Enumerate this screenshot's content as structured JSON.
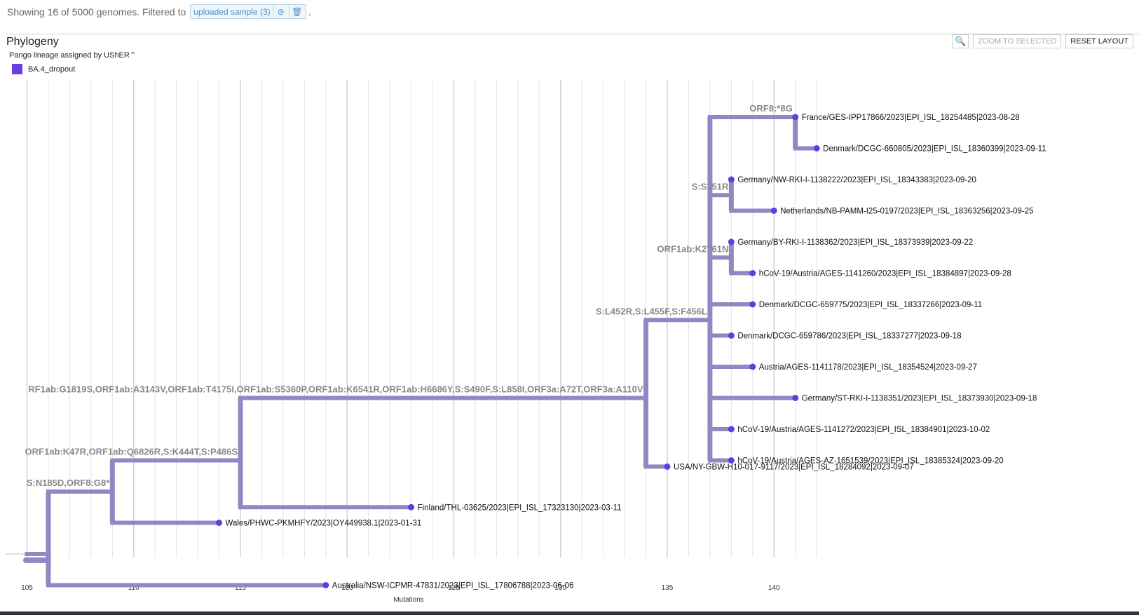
{
  "header": {
    "showing_text": "Showing 16 of 5000 genomes. Filtered to",
    "filter_chip": "uploaded sample (3)",
    "period": "."
  },
  "panel": {
    "title": "Phylogeny",
    "zoom_to_selected_label": "ZOOM TO SELECTED",
    "reset_layout_label": "RESET LAYOUT",
    "search_icon": "search-icon",
    "legend_title": "Pango lineage assigned by UShER",
    "legend_items": [
      {
        "label": "BA.4_dropout",
        "color": "#6a3fe0"
      }
    ]
  },
  "colors": {
    "branch": "#8f88c2",
    "node": "#5b3fe0",
    "grid": "#e3e3e3"
  },
  "chart_data": {
    "type": "phylogeny",
    "xlabel": "Mutations",
    "xlim": [
      105,
      143
    ],
    "xticks": [
      105,
      110,
      115,
      120,
      125,
      130,
      135,
      140
    ],
    "branches": [
      {
        "x0": 105,
        "x1": 106,
        "y": 16
      },
      {
        "x0": 106,
        "x1": 109,
        "y": 14,
        "label": "S:N185D,ORF8:G8*"
      },
      {
        "x0": 106,
        "x1": 119,
        "y": 17
      },
      {
        "x0": 109,
        "x1": 115,
        "y": 13,
        "label": "ORF1ab:K47R,ORF1ab:Q6826R,S:K444T,S:P486S"
      },
      {
        "x0": 109,
        "x1": 114,
        "y": 15
      },
      {
        "x0": 115,
        "x1": 134,
        "y": 11,
        "label": "RF1ab:G1819S,ORF1ab:A3143V,ORF1ab:T4175I,ORF1ab:S5360P,ORF1ab:K6541R,ORF1ab:H6686Y,S:S490F,S:L858I,ORF3a:A72T,ORF3a:A110V"
      },
      {
        "x0": 115,
        "x1": 123,
        "y": 14.5
      },
      {
        "x0": 134,
        "x1": 137,
        "y": 8.5,
        "label": "S:L452R,S:L455F,S:F456L"
      },
      {
        "x0": 134,
        "x1": 135,
        "y": 13.2
      },
      {
        "x0": 137,
        "x1": 141,
        "y": 2,
        "label": "ORF8:*8G"
      },
      {
        "x0": 137,
        "x1": 138,
        "y": 4.5,
        "label": "S:S151R"
      },
      {
        "x0": 137,
        "x1": 138,
        "y": 6.5,
        "label": "ORF1ab:K2761N"
      },
      {
        "x0": 137,
        "x1": 139,
        "y": 8
      },
      {
        "x0": 137,
        "x1": 138,
        "y": 9
      },
      {
        "x0": 137,
        "x1": 139,
        "y": 10
      },
      {
        "x0": 137,
        "x1": 141,
        "y": 11
      },
      {
        "x0": 137,
        "x1": 138,
        "y": 12
      },
      {
        "x0": 137,
        "x1": 138,
        "y": 13
      },
      {
        "x0": 141,
        "x1": 142,
        "y": 3
      },
      {
        "x0": 138,
        "x1": 138,
        "y": 4
      },
      {
        "x0": 138,
        "x1": 140,
        "y": 5
      },
      {
        "x0": 138,
        "x1": 138,
        "y": 6
      },
      {
        "x0": 138,
        "x1": 139,
        "y": 7
      }
    ],
    "verticals": [
      {
        "x": 106,
        "y0": 14,
        "y1": 17
      },
      {
        "x": 109,
        "y0": 13,
        "y1": 15
      },
      {
        "x": 115,
        "y0": 11,
        "y1": 14.5
      },
      {
        "x": 134,
        "y0": 8.5,
        "y1": 13.2
      },
      {
        "x": 137,
        "y0": 2,
        "y1": 13
      },
      {
        "x": 141,
        "y0": 2,
        "y1": 3
      },
      {
        "x": 138,
        "y0": 4,
        "y1": 5
      },
      {
        "x": 138,
        "y0": 6,
        "y1": 7
      }
    ],
    "tips": [
      {
        "x": 141,
        "y": 2,
        "label": "France/GES-IPP17866/2023|EPI_ISL_18254485|2023-08-28"
      },
      {
        "x": 142,
        "y": 3,
        "label": "Denmark/DCGC-660805/2023|EPI_ISL_18360399|2023-09-11"
      },
      {
        "x": 138,
        "y": 4,
        "label": "Germany/NW-RKI-I-1138222/2023|EPI_ISL_18343383|2023-09-20"
      },
      {
        "x": 140,
        "y": 5,
        "label": "Netherlands/NB-PAMM-I25-0197/2023|EPI_ISL_18363256|2023-09-25"
      },
      {
        "x": 138,
        "y": 6,
        "label": "Germany/BY-RKI-I-1138362/2023|EPI_ISL_18373939|2023-09-22"
      },
      {
        "x": 139,
        "y": 7,
        "label": "hCoV-19/Austria/AGES-1141260/2023|EPI_ISL_18384897|2023-09-28"
      },
      {
        "x": 139,
        "y": 8,
        "label": "Denmark/DCGC-659775/2023|EPI_ISL_18337266|2023-09-11"
      },
      {
        "x": 138,
        "y": 9,
        "label": "Denmark/DCGC-659786/2023|EPI_ISL_18337277|2023-09-18"
      },
      {
        "x": 139,
        "y": 10,
        "label": "Austria/AGES-1141178/2023|EPI_ISL_18354524|2023-09-27"
      },
      {
        "x": 141,
        "y": 11,
        "label": "Germany/ST-RKI-I-1138351/2023|EPI_ISL_18373930|2023-09-18"
      },
      {
        "x": 138,
        "y": 12,
        "label": "hCoV-19/Austria/AGES-1141272/2023|EPI_ISL_18384901|2023-10-02"
      },
      {
        "x": 138,
        "y": 13,
        "label": "hCoV-19/Austria/AGES-AZ-1651539/2023|EPI_ISL_18385324|2023-09-20"
      },
      {
        "x": 135,
        "y": 13.2,
        "label": "USA/NY-GBW-H10-017-9117/2023|EPI_ISL_18284092|2023-09-07"
      },
      {
        "x": 123,
        "y": 14.5,
        "label": "Finland/THL-03625/2023|EPI_ISL_17323130|2023-03-11"
      },
      {
        "x": 114,
        "y": 15,
        "label": "Wales/PHWC-PKMHFY/2023|OY449938.1|2023-01-31"
      },
      {
        "x": 119,
        "y": 17,
        "label": "Australia/NSW-ICPMR-47831/2023|EPI_ISL_17806788|2023-06-06"
      }
    ]
  }
}
